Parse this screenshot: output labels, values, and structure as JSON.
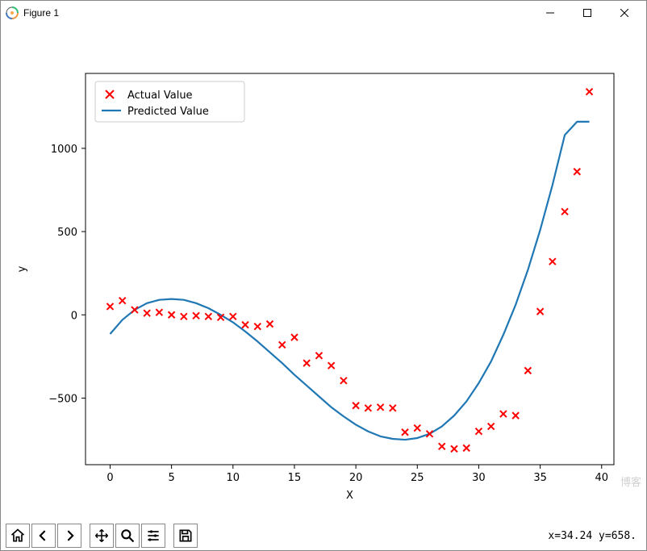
{
  "window": {
    "title": "Figure 1"
  },
  "toolbar": {
    "coord_readout": "x=34.24 y=658."
  },
  "chart": {
    "type": "scatter+line",
    "xlabel": "X",
    "ylabel": "y",
    "xlim": [
      -2,
      41
    ],
    "ylim": [
      -900,
      1450
    ],
    "xticks": [
      0,
      5,
      10,
      15,
      20,
      25,
      30,
      35,
      40
    ],
    "yticks": [
      -500,
      0,
      500,
      1000
    ],
    "background_color": "#ffffff",
    "axis_color": "#000000",
    "tick_fontsize": 13,
    "label_fontsize": 13,
    "legend": {
      "position": "upper-left",
      "border_color": "#cccccc",
      "bg_color": "#ffffff",
      "items": [
        {
          "label": "Actual Value",
          "marker": "x",
          "color": "#ff0000"
        },
        {
          "label": "Predicted Value",
          "marker": "line",
          "color": "#1f77b4"
        }
      ]
    },
    "scatter": {
      "color": "#ff0000",
      "marker": "x",
      "marker_size": 8,
      "marker_linewidth": 2,
      "x": [
        0,
        1,
        2,
        3,
        4,
        5,
        6,
        7,
        8,
        9,
        10,
        11,
        12,
        13,
        14,
        15,
        16,
        17,
        18,
        19,
        20,
        21,
        22,
        23,
        24,
        25,
        26,
        27,
        28,
        29,
        30,
        31,
        32,
        33,
        34,
        35,
        36,
        37,
        38,
        39
      ],
      "y": [
        50,
        85,
        30,
        10,
        15,
        0,
        -10,
        -5,
        -10,
        -15,
        -10,
        -60,
        -70,
        -55,
        -180,
        -135,
        -290,
        -245,
        -305,
        -395,
        -545,
        -560,
        -555,
        -560,
        -705,
        -680,
        -715,
        -790,
        -805,
        -800,
        -700,
        -670,
        -595,
        -605,
        -335,
        20,
        320,
        620,
        860,
        1340
      ]
    },
    "line": {
      "color": "#1f77b4",
      "linewidth": 2.2,
      "x": [
        0,
        1,
        2,
        3,
        4,
        5,
        6,
        7,
        8,
        9,
        10,
        11,
        12,
        13,
        14,
        15,
        16,
        17,
        18,
        19,
        20,
        21,
        22,
        23,
        24,
        25,
        26,
        27,
        28,
        29,
        30,
        31,
        32,
        33,
        34,
        35,
        36,
        37,
        38,
        39
      ],
      "y": [
        -115,
        -30,
        30,
        70,
        90,
        95,
        90,
        70,
        40,
        0,
        -45,
        -100,
        -160,
        -225,
        -290,
        -360,
        -425,
        -490,
        -555,
        -610,
        -660,
        -700,
        -730,
        -745,
        -750,
        -740,
        -715,
        -670,
        -605,
        -520,
        -410,
        -280,
        -120,
        60,
        270,
        510,
        780,
        1080,
        1160,
        1160
      ]
    }
  },
  "watermark": "博客"
}
